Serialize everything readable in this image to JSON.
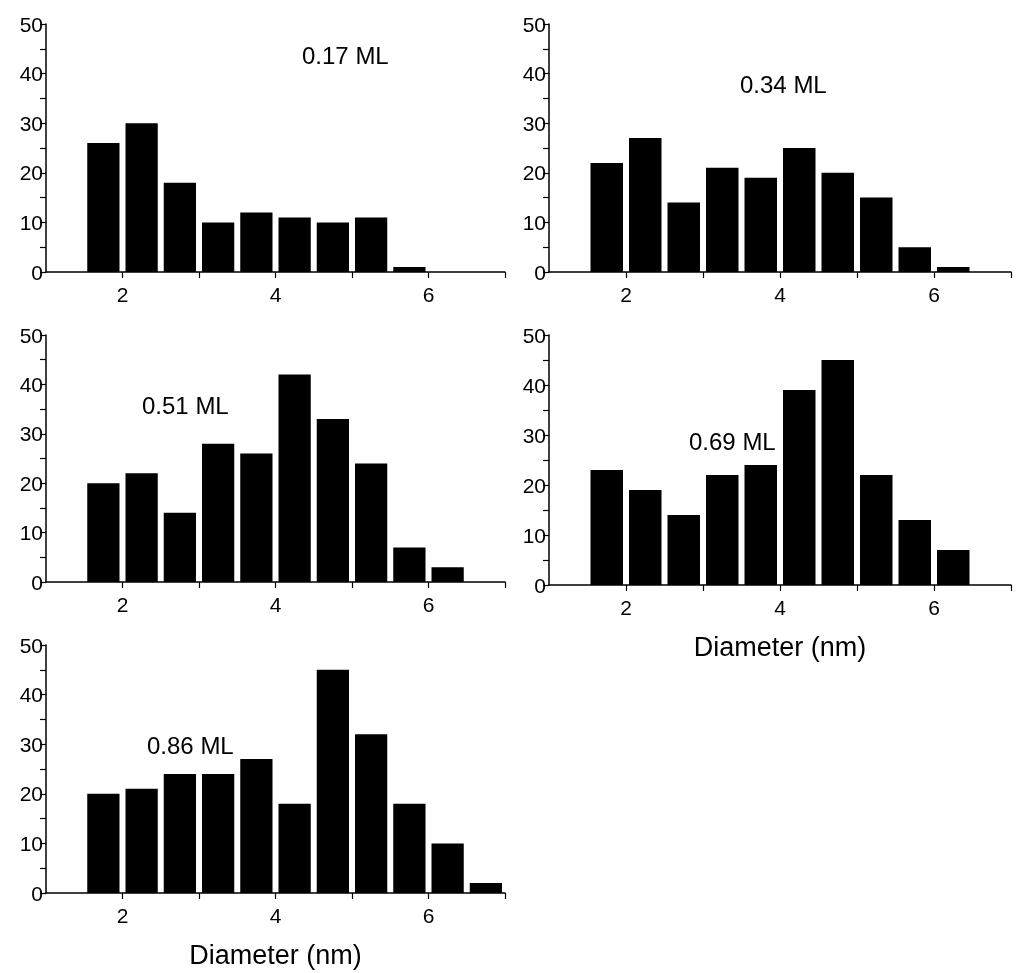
{
  "chart_data": [
    {
      "type": "histogram",
      "bins": [
        1.5,
        2,
        2.5,
        3,
        3.5,
        4,
        4.5,
        5,
        5.5,
        6
      ],
      "values": [
        26,
        30,
        18,
        10,
        12,
        11,
        10,
        11,
        1
      ],
      "color": "#000000",
      "xlim": [
        1,
        7
      ],
      "xticks": [
        2,
        {
          "value": 3,
          "label": null
        },
        4,
        {
          "value": 5,
          "label": null
        },
        6,
        {
          "value": 7,
          "label": null
        }
      ],
      "ylim": [
        0,
        50
      ],
      "yticks": [
        0,
        {
          "value": 5,
          "label": null
        },
        10,
        {
          "value": 15,
          "label": null
        },
        20,
        {
          "value": 25,
          "label": null
        },
        30,
        {
          "value": 35,
          "label": null
        },
        40,
        {
          "value": 45,
          "label": null
        },
        50
      ],
      "annotations": [
        "0.17 ML"
      ]
    },
    {
      "type": "histogram",
      "bins": [
        1.5,
        2,
        2.5,
        3,
        3.5,
        4,
        4.5,
        5,
        5.5,
        6,
        6.5
      ],
      "values": [
        22,
        27,
        14,
        21,
        19,
        25,
        20,
        15,
        5,
        1
      ],
      "color": "#000000",
      "xlim": [
        1,
        7
      ],
      "xticks": [
        2,
        {
          "value": 3,
          "label": null
        },
        4,
        {
          "value": 5,
          "label": null
        },
        6,
        {
          "value": 7,
          "label": null
        }
      ],
      "ylim": [
        0,
        50
      ],
      "yticks": [
        0,
        {
          "value": 5,
          "label": null
        },
        10,
        {
          "value": 15,
          "label": null
        },
        20,
        {
          "value": 25,
          "label": null
        },
        30,
        {
          "value": 35,
          "label": null
        },
        40,
        {
          "value": 45,
          "label": null
        },
        50
      ],
      "annotations": [
        "0.34 ML"
      ]
    },
    {
      "type": "histogram",
      "bins": [
        1.5,
        2,
        2.5,
        3,
        3.5,
        4,
        4.5,
        5,
        5.5,
        6,
        6.5
      ],
      "values": [
        20,
        22,
        14,
        28,
        26,
        42,
        33,
        24,
        7,
        3
      ],
      "color": "#000000",
      "xlim": [
        1,
        7
      ],
      "xticks": [
        2,
        {
          "value": 3,
          "label": null
        },
        4,
        {
          "value": 5,
          "label": null
        },
        6,
        {
          "value": 7,
          "label": null
        }
      ],
      "ylim": [
        0,
        50
      ],
      "yticks": [
        0,
        {
          "value": 5,
          "label": null
        },
        10,
        {
          "value": 15,
          "label": null
        },
        20,
        {
          "value": 25,
          "label": null
        },
        30,
        {
          "value": 35,
          "label": null
        },
        40,
        {
          "value": 45,
          "label": null
        },
        50
      ],
      "annotations": [
        "0.51 ML"
      ]
    },
    {
      "type": "histogram",
      "bins": [
        1.5,
        2,
        2.5,
        3,
        3.5,
        4,
        4.5,
        5,
        5.5,
        6,
        6.5
      ],
      "values": [
        23,
        19,
        14,
        22,
        24,
        39,
        45,
        22,
        13,
        7
      ],
      "color": "#000000",
      "xlim": [
        1,
        7
      ],
      "xticks": [
        2,
        {
          "value": 3,
          "label": null
        },
        4,
        {
          "value": 5,
          "label": null
        },
        6,
        {
          "value": 7,
          "label": null
        }
      ],
      "ylim": [
        0,
        50
      ],
      "yticks": [
        0,
        {
          "value": 5,
          "label": null
        },
        10,
        {
          "value": 15,
          "label": null
        },
        20,
        {
          "value": 25,
          "label": null
        },
        30,
        {
          "value": 35,
          "label": null
        },
        40,
        {
          "value": 45,
          "label": null
        },
        50
      ],
      "xlabel": "Diameter (nm)",
      "annotations": [
        "0.69 ML"
      ]
    },
    {
      "type": "histogram",
      "bins": [
        1.5,
        2,
        2.5,
        3,
        3.5,
        4,
        4.5,
        5,
        5.5,
        6,
        6.5,
        7
      ],
      "values": [
        20,
        21,
        24,
        24,
        27,
        18,
        45,
        32,
        18,
        10,
        2
      ],
      "color": "#000000",
      "xlim": [
        1,
        7
      ],
      "xticks": [
        2,
        {
          "value": 3,
          "label": null
        },
        4,
        {
          "value": 5,
          "label": null
        },
        6,
        {
          "value": 7,
          "label": null
        }
      ],
      "ylim": [
        0,
        50
      ],
      "yticks": [
        0,
        {
          "value": 5,
          "label": null
        },
        10,
        {
          "value": 15,
          "label": null
        },
        20,
        {
          "value": 25,
          "label": null
        },
        30,
        {
          "value": 35,
          "label": null
        },
        40,
        {
          "value": 45,
          "label": null
        },
        50
      ],
      "xlabel": "Diameter (nm)",
      "annotations": [
        "0.86 ML"
      ]
    }
  ]
}
